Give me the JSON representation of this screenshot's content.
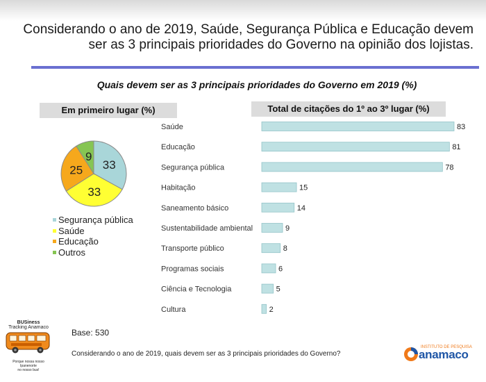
{
  "header": {
    "line1": "Considerando o ano de 2019, Saúde, Segurança Pública e Educação devem",
    "line2": "ser as 3 principais prioridades do Governo na opinião dos lojistas."
  },
  "question": "Quais devem ser as 3 principais prioridades  do Governo em 2019 (%)",
  "base": "Base: 530",
  "footer_question": "Considerando o ano de 2019, quais devem ser as 3 principais prioridades do Governo?",
  "branding": {
    "bus_line1": "BUSiness",
    "bus_line2": "Tracking Anamaco",
    "bus_slogan1": "Porque nossa nosso Ipanenorte",
    "bus_slogan2": "no nosso bus!",
    "logo_small": "INSTITUTO DE PESQUISA",
    "logo_name": "anamaco"
  },
  "chart_data": [
    {
      "type": "pie",
      "title": "Em primeiro lugar (%)",
      "slices": [
        {
          "label": "Segurança pública",
          "value": 33,
          "color": "#a9d6d9"
        },
        {
          "label": "Saúde",
          "value": 33,
          "color": "#ffff33"
        },
        {
          "label": "Educação",
          "value": 25,
          "color": "#f6a81c"
        },
        {
          "label": "Outros",
          "value": 9,
          "color": "#86c553"
        }
      ],
      "legend_position": "bottom"
    },
    {
      "type": "bar",
      "orientation": "horizontal",
      "title": "Total de citações do 1º ao 3º lugar (%)",
      "categories": [
        "Saúde",
        "Educação",
        "Segurança pública",
        "Habitação",
        "Saneamento básico",
        "Sustentabilidade ambiental",
        "Transporte público",
        "Programas sociais",
        "Ciência e Tecnologia",
        "Cultura"
      ],
      "values": [
        83,
        81,
        78,
        15,
        14,
        9,
        8,
        6,
        5,
        2
      ],
      "bar_color": "#bfe1e3",
      "bar_stroke": "#93c4c8",
      "xlim": [
        0,
        83
      ]
    }
  ]
}
